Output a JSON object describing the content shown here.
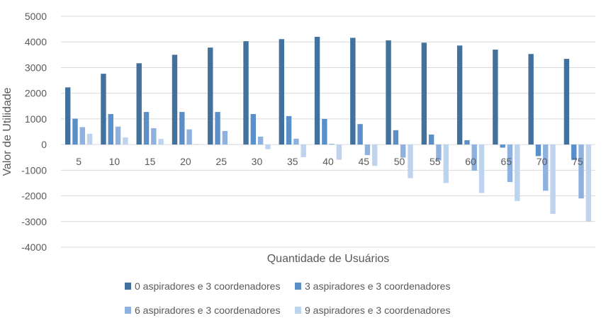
{
  "chart_data": {
    "type": "bar",
    "title": "",
    "xlabel": "Quantidade de Usuários",
    "ylabel": "Valor de Utilidade",
    "ylim": [
      -4000,
      5000
    ],
    "yticks": [
      5000,
      4000,
      3000,
      2000,
      1000,
      0,
      -1000,
      -2000,
      -3000,
      -4000
    ],
    "grid": true,
    "legend_position": "bottom",
    "categories": [
      "5",
      "10",
      "15",
      "20",
      "25",
      "30",
      "35",
      "40",
      "45",
      "50",
      "55",
      "60",
      "65",
      "70",
      "75"
    ],
    "series": [
      {
        "name": "0 aspiradores e 3 coordenadores",
        "color": "#41719c",
        "values": [
          2230,
          2760,
          3170,
          3500,
          3780,
          4030,
          4110,
          4200,
          4160,
          4060,
          3970,
          3860,
          3700,
          3530,
          3340
        ]
      },
      {
        "name": "3 aspiradores e 3 coordenadores",
        "color": "#5b8fc9",
        "values": [
          1010,
          1190,
          1270,
          1270,
          1270,
          1190,
          1110,
          1000,
          800,
          560,
          390,
          170,
          -120,
          -450,
          -600
        ]
      },
      {
        "name": "6 aspiradores e 3 coordenadores",
        "color": "#8eb1df",
        "values": [
          680,
          700,
          640,
          590,
          530,
          310,
          230,
          30,
          -410,
          -510,
          -620,
          -1020,
          -1460,
          -1800,
          -2100
        ]
      },
      {
        "name": "9 aspiradores e 3 coordenadores",
        "color": "#bdd3ee",
        "values": [
          420,
          280,
          220,
          20,
          0,
          -180,
          -490,
          -590,
          -830,
          -1310,
          -1500,
          -1890,
          -2200,
          -2700,
          -3000
        ]
      }
    ]
  }
}
